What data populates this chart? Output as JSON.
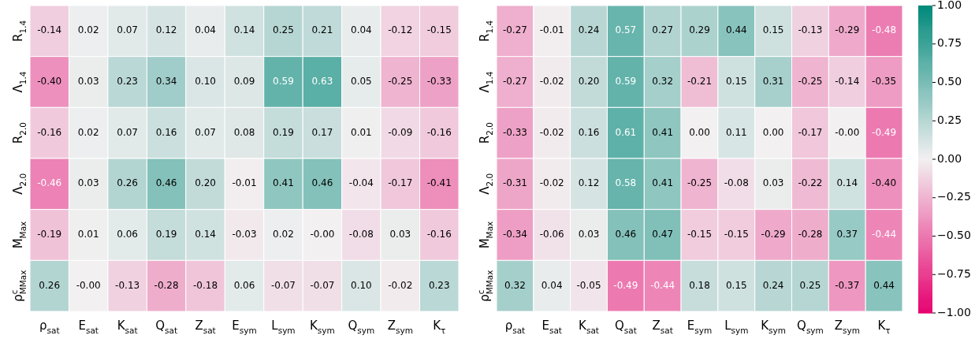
{
  "chart_data": [
    {
      "type": "heatmap",
      "categories": [
        "ρ$_{sat}$",
        "E$_{sat}$",
        "K$_{sat}$",
        "Q$_{sat}$",
        "Z$_{sat}$",
        "E$_{sym}$",
        "L$_{sym}$",
        "K$_{sym}$",
        "Q$_{sym}$",
        "Z$_{sym}$",
        "K$_{τ}$"
      ],
      "y_categories": [
        "R$_{1.4}$",
        "Λ$_{1.4}$",
        "R$_{2.0}$",
        "Λ$_{2.0}$",
        "M$_{Max}$",
        "ρ$^{c}$$_{MMax}$"
      ],
      "cells": [
        [
          -0.14,
          0.02,
          0.07,
          0.12,
          0.04,
          0.14,
          0.25,
          0.21,
          0.04,
          -0.12,
          -0.15
        ],
        [
          -0.4,
          0.03,
          0.23,
          0.34,
          0.1,
          0.09,
          0.59,
          0.63,
          0.05,
          -0.25,
          -0.33
        ],
        [
          -0.16,
          0.02,
          0.07,
          0.16,
          0.07,
          0.08,
          0.19,
          0.17,
          0.01,
          -0.09,
          -0.16
        ],
        [
          -0.46,
          0.03,
          0.26,
          0.46,
          0.2,
          -0.01,
          0.41,
          0.46,
          -0.04,
          -0.17,
          -0.41
        ],
        [
          -0.19,
          0.01,
          0.06,
          0.19,
          0.14,
          -0.03,
          0.02,
          0.0,
          -0.08,
          0.03,
          -0.16
        ],
        [
          0.26,
          0.0,
          -0.13,
          -0.28,
          -0.18,
          0.06,
          -0.07,
          -0.07,
          0.1,
          -0.02,
          0.23
        ]
      ],
      "cell_labels": [
        [
          "-0.14",
          "0.02",
          "0.07",
          "0.12",
          "0.04",
          "0.14",
          "0.25",
          "0.21",
          "0.04",
          "-0.12",
          "-0.15"
        ],
        [
          "-0.40",
          "0.03",
          "0.23",
          "0.34",
          "0.10",
          "0.09",
          "0.59",
          "0.63",
          "0.05",
          "-0.25",
          "-0.33"
        ],
        [
          "-0.16",
          "0.02",
          "0.07",
          "0.16",
          "0.07",
          "0.08",
          "0.19",
          "0.17",
          "0.01",
          "-0.09",
          "-0.16"
        ],
        [
          "-0.46",
          "0.03",
          "0.26",
          "0.46",
          "0.20",
          "-0.01",
          "0.41",
          "0.46",
          "-0.04",
          "-0.17",
          "-0.41"
        ],
        [
          "-0.19",
          "0.01",
          "0.06",
          "0.19",
          "0.14",
          "-0.03",
          "0.02",
          "-0.00",
          "-0.08",
          "0.03",
          "-0.16"
        ],
        [
          "0.26",
          "-0.00",
          "-0.13",
          "-0.28",
          "-0.18",
          "0.06",
          "-0.07",
          "-0.07",
          "0.10",
          "-0.02",
          "0.23"
        ]
      ]
    },
    {
      "type": "heatmap",
      "categories": [
        "ρ$_{sat}$",
        "E$_{sat}$",
        "K$_{sat}$",
        "Q$_{sat}$",
        "Z$_{sat}$",
        "E$_{sym}$",
        "L$_{sym}$",
        "K$_{sym}$",
        "Q$_{sym}$",
        "Z$_{sym}$",
        "K$_{τ}$"
      ],
      "y_categories": [
        "R$_{1.4}$",
        "Λ$_{1.4}$",
        "R$_{2.0}$",
        "Λ$_{2.0}$",
        "M$_{Max}$",
        "ρ$^{c}$$_{MMax}$"
      ],
      "cells": [
        [
          -0.27,
          -0.01,
          0.24,
          0.57,
          0.27,
          0.29,
          0.44,
          0.15,
          -0.13,
          -0.29,
          -0.48
        ],
        [
          -0.27,
          -0.02,
          0.2,
          0.59,
          0.32,
          -0.21,
          0.15,
          0.31,
          -0.25,
          -0.14,
          -0.35
        ],
        [
          -0.33,
          -0.02,
          0.16,
          0.61,
          0.41,
          0.0,
          0.11,
          0.0,
          -0.17,
          0.0,
          -0.49
        ],
        [
          -0.31,
          -0.02,
          0.12,
          0.58,
          0.41,
          -0.25,
          -0.08,
          0.03,
          -0.22,
          0.14,
          -0.4
        ],
        [
          -0.34,
          -0.06,
          0.03,
          0.46,
          0.47,
          -0.15,
          -0.15,
          -0.29,
          -0.28,
          0.37,
          -0.44
        ],
        [
          0.32,
          0.04,
          -0.05,
          -0.49,
          -0.44,
          0.18,
          0.15,
          0.24,
          0.25,
          -0.37,
          0.44
        ]
      ],
      "cell_labels": [
        [
          "-0.27",
          "-0.01",
          "0.24",
          "0.57",
          "0.27",
          "0.29",
          "0.44",
          "0.15",
          "-0.13",
          "-0.29",
          "-0.48"
        ],
        [
          "-0.27",
          "-0.02",
          "0.20",
          "0.59",
          "0.32",
          "-0.21",
          "0.15",
          "0.31",
          "-0.25",
          "-0.14",
          "-0.35"
        ],
        [
          "-0.33",
          "-0.02",
          "0.16",
          "0.61",
          "0.41",
          "0.00",
          "0.11",
          "0.00",
          "-0.17",
          "-0.00",
          "-0.49"
        ],
        [
          "-0.31",
          "-0.02",
          "0.12",
          "0.58",
          "0.41",
          "-0.25",
          "-0.08",
          "0.03",
          "-0.22",
          "0.14",
          "-0.40"
        ],
        [
          "-0.34",
          "-0.06",
          "0.03",
          "0.46",
          "0.47",
          "-0.15",
          "-0.15",
          "-0.29",
          "-0.28",
          "0.37",
          "-0.44"
        ],
        [
          "0.32",
          "0.04",
          "-0.05",
          "-0.49",
          "-0.44",
          "0.18",
          "0.15",
          "0.24",
          "0.25",
          "-0.37",
          "0.44"
        ]
      ],
      "clim": [
        -1,
        1
      ],
      "cticks": [
        {
          "value": 1,
          "label": "1.00"
        },
        {
          "value": 0.75,
          "label": "0.75"
        },
        {
          "value": 0.5,
          "label": "0.50"
        },
        {
          "value": 0.25,
          "label": "0.25"
        },
        {
          "value": 0,
          "label": "0.00"
        },
        {
          "value": -0.25,
          "label": "−0.25"
        },
        {
          "value": -0.5,
          "label": "−0.50"
        },
        {
          "value": -0.75,
          "label": "−0.75"
        },
        {
          "value": -1,
          "label": "−1.00"
        }
      ]
    }
  ]
}
